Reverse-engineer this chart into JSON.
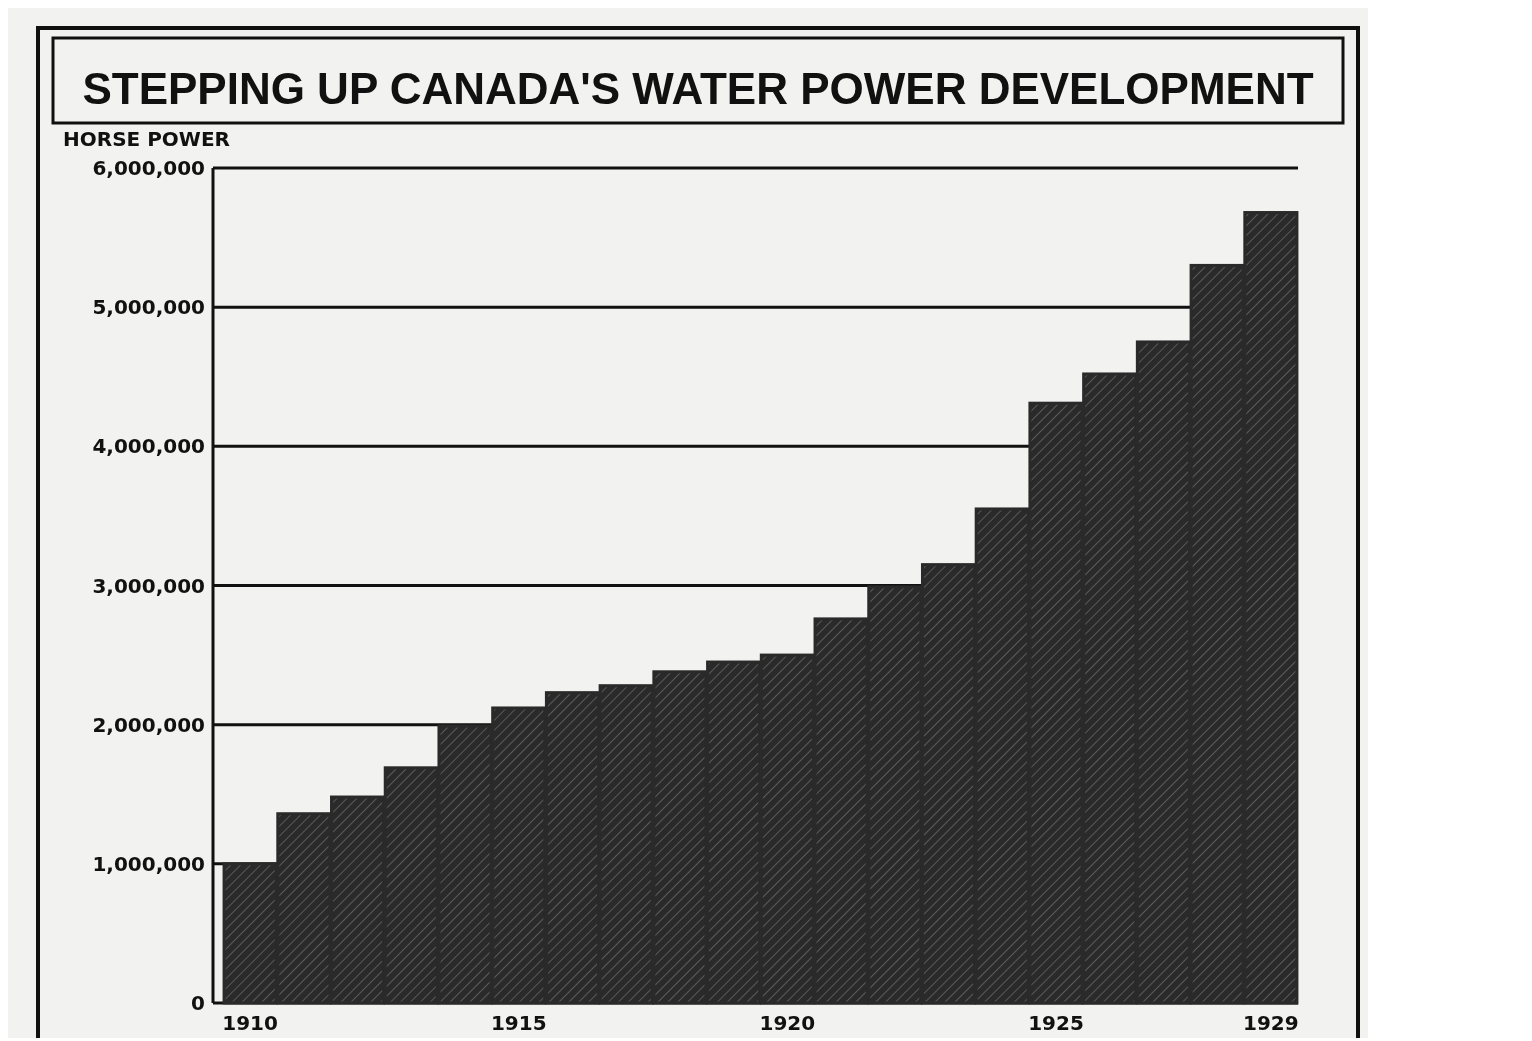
{
  "chart_data": {
    "type": "bar",
    "title": "STEPPING UP CANADA'S WATER POWER DEVELOPMENT",
    "ylabel": "HORSE POWER",
    "categories": [
      "1910",
      null,
      null,
      null,
      null,
      "1915",
      null,
      null,
      null,
      null,
      "1920",
      null,
      null,
      null,
      null,
      "1925",
      null,
      null,
      null,
      "1929"
    ],
    "values": [
      1000000.0,
      1360000.0,
      1480000.0,
      1690000.0,
      1990000.0,
      2120000.0,
      2230000.0,
      2280000.0,
      2380000.0,
      2450000.0,
      2500000.0,
      2760000.0,
      2990000.0,
      3150000.0,
      3550000.0,
      4310000.0,
      4520000.0,
      4750000.0,
      5300000.0,
      5680000.0
    ],
    "color": "#2a2a2a",
    "ylim": [
      0,
      6000000
    ],
    "yticks": [
      0,
      {
        "value": 1000000,
        "label": "1,000,000"
      },
      {
        "value": 2000000,
        "label": "2,000,000"
      },
      {
        "value": 3000000,
        "label": "3,000,000"
      },
      {
        "value": 4000000,
        "label": "4,000,000"
      },
      {
        "value": 5000000,
        "label": "5,000,000"
      },
      {
        "value": 6000000,
        "label": "6,000,000"
      }
    ],
    "grid": "y"
  }
}
